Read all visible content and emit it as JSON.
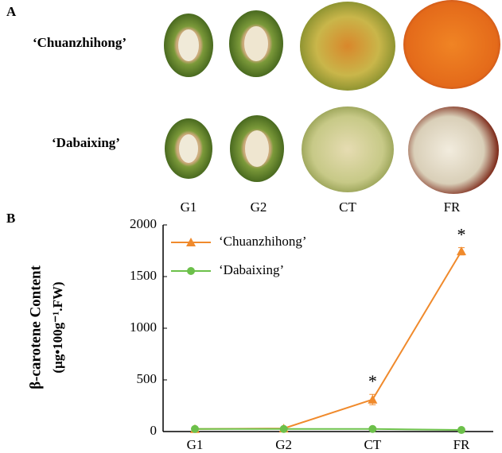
{
  "panel_a": {
    "label": "A",
    "cultivars": [
      "‘Chuanzhihong’",
      "‘Dabaixing’"
    ],
    "stages": [
      "G1",
      "G2",
      "CT",
      "FR"
    ]
  },
  "chart_data": {
    "type": "line",
    "panel_label": "B",
    "y_label": [
      "β-carotene Content",
      "(μg•100g⁻¹.FW)"
    ],
    "categories": [
      "G1",
      "G2",
      "CT",
      "FR"
    ],
    "series": [
      {
        "name": "‘Chuanzhihong’",
        "color": "#f08a2c",
        "marker": "triangle",
        "values": [
          25,
          30,
          310,
          1745
        ],
        "errors": [
          5,
          5,
          50,
          35
        ]
      },
      {
        "name": "‘Dabaixing’",
        "color": "#6cc04a",
        "marker": "circle",
        "values": [
          25,
          25,
          25,
          15
        ],
        "errors": [
          3,
          3,
          3,
          3
        ]
      }
    ],
    "annotations": [
      {
        "text": "*",
        "x": "CT"
      },
      {
        "text": "*",
        "x": "FR"
      }
    ],
    "ylim": [
      0,
      2000
    ],
    "yticks": [
      0,
      500,
      1000,
      1500,
      2000
    ],
    "legend": "upper-left"
  }
}
